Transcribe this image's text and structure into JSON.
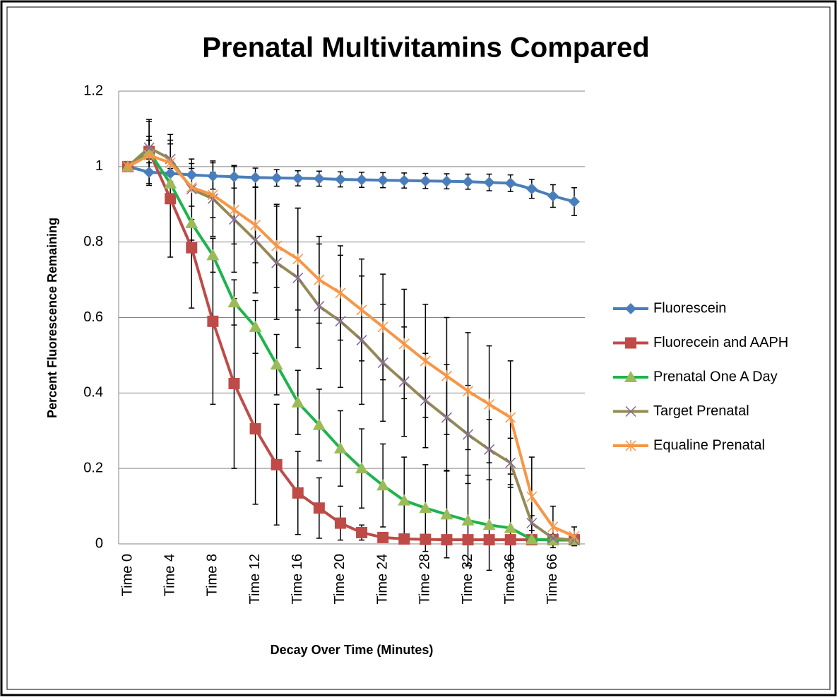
{
  "chart_data": {
    "type": "line",
    "title": "Prenatal Multivitamins Compared",
    "x_label": "Decay  Over Time (Minutes)",
    "y_label": "Percent Fluorescence Remaining",
    "categories": [
      "Time 0",
      null,
      "Time 4",
      null,
      "Time 8",
      null,
      "Time 12",
      null,
      "Time 16",
      null,
      "Time 20",
      null,
      "Time 24",
      null,
      "Time 28",
      null,
      "Time 32",
      null,
      "Time 36",
      null,
      "Time 66",
      null
    ],
    "ylim": [
      0,
      1.2
    ],
    "yticks": [
      0,
      0.2,
      0.4,
      0.6,
      0.8,
      1,
      1.2
    ],
    "grid": true,
    "legend": "right",
    "series": [
      {
        "name": "Fluorescein",
        "color": "#4a7ebb",
        "marker": "diamond",
        "values": [
          1,
          0.985,
          0.982,
          0.978,
          0.975,
          0.973,
          0.971,
          0.97,
          0.969,
          0.968,
          0.966,
          0.965,
          0.964,
          0.963,
          0.962,
          0.961,
          0.96,
          0.958,
          0.956,
          0.941,
          0.922,
          0.907
        ],
        "errors": [
          0,
          0.035,
          0.03,
          0.03,
          0.035,
          0.03,
          0.025,
          0.022,
          0.02,
          0.02,
          0.02,
          0.02,
          0.02,
          0.02,
          0.02,
          0.02,
          0.02,
          0.022,
          0.022,
          0.025,
          0.03,
          0.037
        ]
      },
      {
        "name": "Fluorecein and AAPH",
        "color": "#be4b48",
        "marker": "square",
        "values": [
          1,
          1.04,
          0.915,
          0.785,
          0.59,
          0.425,
          0.305,
          0.21,
          0.135,
          0.095,
          0.055,
          0.03,
          0.017,
          0.013,
          0.012,
          0.011,
          0.011,
          0.011,
          0.011,
          0.011,
          0.011,
          0.011
        ],
        "errors": [
          0,
          0.085,
          0.155,
          0.16,
          0.22,
          0.225,
          0.2,
          0.16,
          0.11,
          0.08,
          0.045,
          0.02,
          0.01,
          0.005,
          0.005,
          0.005,
          0.005,
          0.005,
          0.005,
          0.005,
          0.005,
          0.005
        ]
      },
      {
        "name": "Prenatal One A Day",
        "color": "#1db44c",
        "marker": "triangle",
        "values": [
          1,
          1.04,
          0.955,
          0.85,
          0.765,
          0.64,
          0.575,
          0.475,
          0.375,
          0.315,
          0.253,
          0.2,
          0.155,
          0.115,
          0.095,
          0.078,
          0.062,
          0.05,
          0.042,
          0.012,
          0.01,
          0.01
        ],
        "errors": [
          0,
          0.03,
          0.04,
          0.045,
          0.045,
          0.06,
          0.07,
          0.08,
          0.085,
          0.095,
          0.1,
          0.105,
          0.11,
          0.115,
          0.115,
          0.115,
          0.12,
          0.12,
          0.115,
          0.01,
          0.01,
          0.01
        ]
      },
      {
        "name": "Target Prenatal",
        "color": "#948a54",
        "marker": "x",
        "values": [
          1,
          1.05,
          1.02,
          0.94,
          0.915,
          0.86,
          0.805,
          0.745,
          0.705,
          0.63,
          0.59,
          0.54,
          0.48,
          0.43,
          0.38,
          0.335,
          0.29,
          0.25,
          0.215,
          0.055,
          0.015,
          0.01
        ],
        "errors": [
          0,
          0.07,
          0.065,
          0.08,
          0.1,
          0.14,
          0.14,
          0.15,
          0.185,
          0.165,
          0.175,
          0.17,
          0.155,
          0.145,
          0.125,
          0.14,
          0.13,
          0.08,
          0.065,
          0.02,
          0.01,
          0.01
        ]
      },
      {
        "name": "Equaline Prenatal",
        "color": "#f79646",
        "marker": "star",
        "values": [
          1,
          1.03,
          1.01,
          0.945,
          0.925,
          0.885,
          0.845,
          0.79,
          0.755,
          0.7,
          0.665,
          0.62,
          0.575,
          0.53,
          0.485,
          0.445,
          0.405,
          0.37,
          0.335,
          0.125,
          0.045,
          0.02
        ],
        "errors": [
          0,
          0.05,
          0.05,
          0.05,
          0.06,
          0.09,
          0.1,
          0.11,
          0.135,
          0.115,
          0.125,
          0.135,
          0.14,
          0.145,
          0.15,
          0.155,
          0.155,
          0.155,
          0.15,
          0.105,
          0.055,
          0.025
        ]
      }
    ]
  }
}
